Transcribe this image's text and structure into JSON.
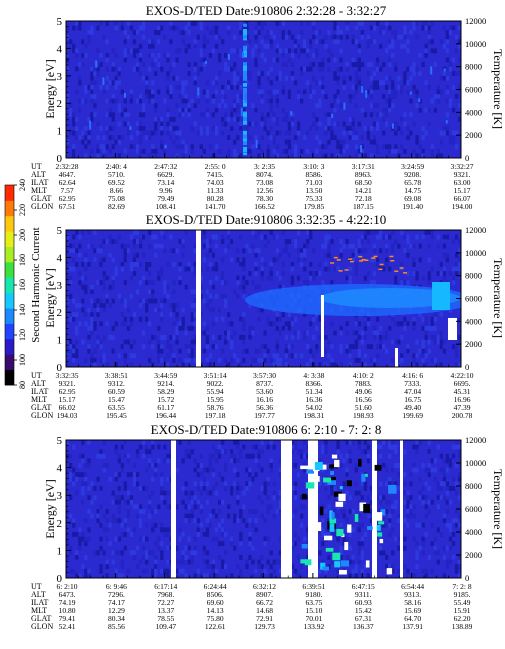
{
  "chart_data": [
    {
      "type": "heatmap",
      "title": "EXOS-D/TED  Date:910806  2:32:28 - 3:32:27",
      "ylabel": "Energy [eV]",
      "y2label": "Temperature [K]",
      "yticks": [
        "0",
        "1",
        "2",
        "3",
        "4",
        "5"
      ],
      "y2ticks": [
        "0",
        "2000",
        "4000",
        "6000",
        "8000",
        "10000",
        "12000"
      ],
      "ylim": [
        0,
        5
      ],
      "y2lim": [
        0,
        12000
      ],
      "row_labels": [
        "UT",
        "ALT",
        "ILAT",
        "MLT",
        "GLAT",
        "GLON"
      ],
      "columns": [
        [
          "2:32:28",
          "4647.",
          "62.64",
          "7.57",
          "62.95",
          "67.51"
        ],
        [
          "2:40: 4",
          "5710.",
          "69.52",
          "8.66",
          "75.08",
          "82.69"
        ],
        [
          "2:47:32",
          "6629.",
          "73.14",
          "9.96",
          "79.49",
          "108.41"
        ],
        [
          "2:55: 0",
          "7415.",
          "74.03",
          "11.33",
          "80.28",
          "141.70"
        ],
        [
          "3: 2:35",
          "8074.",
          "73.08",
          "12.56",
          "78.30",
          "166.52"
        ],
        [
          "3:10: 3",
          "8586.",
          "71.03",
          "13.50",
          "75.33",
          "179.85"
        ],
        [
          "3:17:31",
          "8963.",
          "68.50",
          "14.21",
          "72.18",
          "187.15"
        ],
        [
          "3:24:59",
          "9208.",
          "65.78",
          "14.75",
          "69.08",
          "191.40"
        ],
        [
          "3:32:27",
          "9321.",
          "63.00",
          "15.17",
          "66.07",
          "194.00"
        ]
      ]
    },
    {
      "type": "heatmap",
      "title": "EXOS-D/TED  Date:910806  3:32:35 - 4:22:10",
      "ylabel": "Energy [eV]",
      "y2label": "Temperature [K]",
      "yticks": [
        "0",
        "1",
        "2",
        "3",
        "4",
        "5"
      ],
      "y2ticks": [
        "0",
        "2000",
        "4000",
        "6000",
        "8000",
        "10000",
        "12000"
      ],
      "ylim": [
        0,
        5
      ],
      "y2lim": [
        0,
        12000
      ],
      "row_labels": [
        "UT",
        "ALT",
        "ILAT",
        "MLT",
        "GLAT",
        "GLON"
      ],
      "columns": [
        [
          "3:32:35",
          "9321.",
          "62.95",
          "15.17",
          "66.02",
          "194.03"
        ],
        [
          "3:38:51",
          "9312.",
          "60.59",
          "15.47",
          "63.55",
          "195.45"
        ],
        [
          "3:44:59",
          "9214.",
          "58.29",
          "15.72",
          "61.17",
          "196.44"
        ],
        [
          "3:51:14",
          "9022.",
          "55.94",
          "15.95",
          "58.76",
          "197.18"
        ],
        [
          "3:57:30",
          "8737.",
          "53.60",
          "16.16",
          "56.36",
          "197.77"
        ],
        [
          "4: 3:38",
          "8366.",
          "51.34",
          "16.36",
          "54.02",
          "198.31"
        ],
        [
          "4:10: 2",
          "7883.",
          "49.06",
          "16.56",
          "51.60",
          "198.93"
        ],
        [
          "4:16: 6",
          "7333.",
          "47.04",
          "16.75",
          "49.40",
          "199.69"
        ],
        [
          "4:22:10",
          "6695.",
          "45.31",
          "16.96",
          "47.39",
          "200.78"
        ]
      ]
    },
    {
      "type": "heatmap",
      "title": "EXOS-D/TED  Date:910806  6: 2:10 - 7: 2: 8",
      "ylabel": "Energy [eV]",
      "y2label": "Temperature [K]",
      "yticks": [
        "0",
        "1",
        "2",
        "3",
        "4",
        "5"
      ],
      "y2ticks": [
        "0",
        "2000",
        "4000",
        "6000",
        "8000",
        "10000",
        "12000"
      ],
      "ylim": [
        0,
        5
      ],
      "y2lim": [
        0,
        12000
      ],
      "row_labels": [
        "UT",
        "ALT",
        "ILAT",
        "MLT",
        "GLAT",
        "GLON"
      ],
      "columns": [
        [
          "6: 2:10",
          "6473.",
          "74.19",
          "10.80",
          "79.41",
          "52.41"
        ],
        [
          "6: 9:46",
          "7296.",
          "74.17",
          "12.29",
          "80.34",
          "85.56"
        ],
        [
          "6:17:14",
          "7968.",
          "72.27",
          "13.37",
          "78.55",
          "109.47"
        ],
        [
          "6:24:44",
          "8506.",
          "69.60",
          "14.13",
          "75.80",
          "122.61"
        ],
        [
          "6:32:12",
          "8907.",
          "66.72",
          "14.68",
          "72.91",
          "129.73"
        ],
        [
          "6:39:51",
          "9180.",
          "63.75",
          "15.10",
          "70.01",
          "133.92"
        ],
        [
          "6:47:15",
          "9311.",
          "60.93",
          "15.42",
          "67.31",
          "136.37"
        ],
        [
          "6:54:44",
          "9313.",
          "58.16",
          "15.69",
          "64.70",
          "137.91"
        ],
        [
          "7: 2: 8",
          "9185.",
          "55.49",
          "15.91",
          "62.20",
          "138.89"
        ]
      ]
    }
  ],
  "colorbar": {
    "label": "Second Harmonic Current",
    "ticks": [
      "80",
      "100",
      "120",
      "140",
      "160",
      "180",
      "200",
      "220",
      "240"
    ],
    "range": [
      80,
      240
    ],
    "colors": [
      "#000000",
      "#3b0a6e",
      "#2a1ac8",
      "#2244ff",
      "#1e88ff",
      "#16c8ff",
      "#18e6b0",
      "#3ce040",
      "#a8ee22",
      "#e6ee18",
      "#ffc810",
      "#ff7a08",
      "#ff2a00"
    ]
  }
}
